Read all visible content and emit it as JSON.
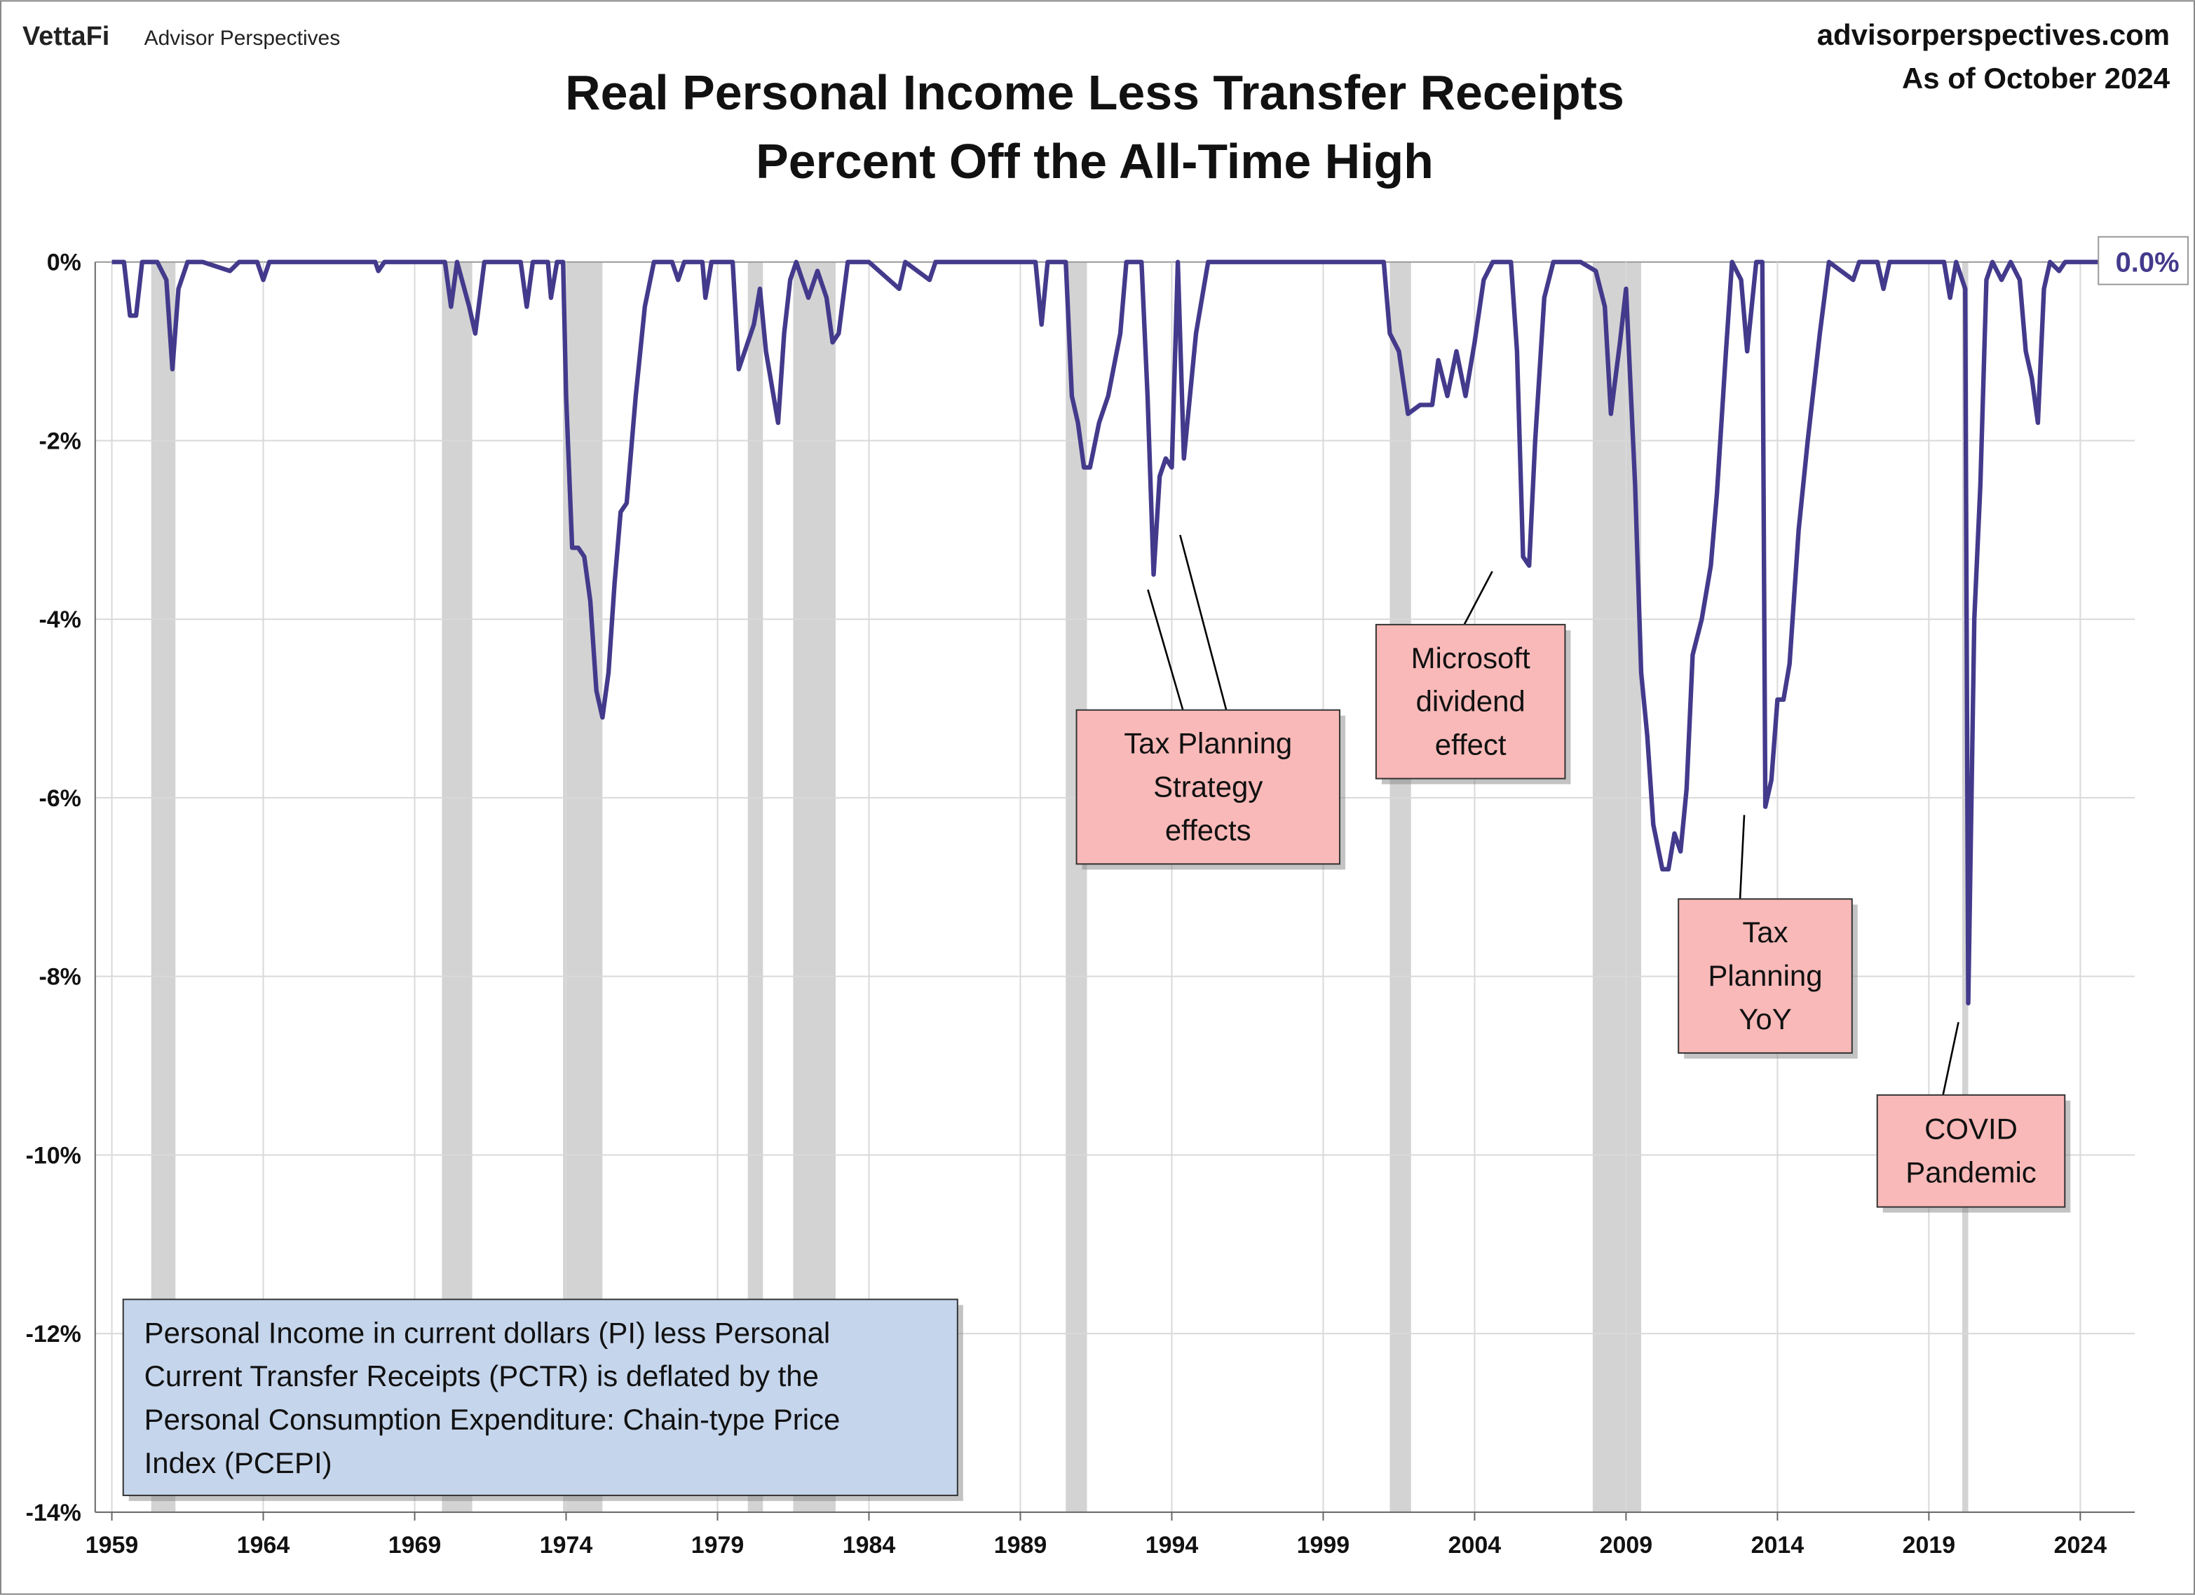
{
  "header": {
    "logo": "VettaFi",
    "brand": "Advisor Perspectives",
    "site": "advisorperspectives.com",
    "date": "As of October 2024"
  },
  "chart_data": {
    "type": "line",
    "title": [
      "Real Personal Income Less Transfer Receipts",
      "Percent Off the All-Time High"
    ],
    "xlim": [
      1958.45,
      2025.8
    ],
    "ylim": [
      -14,
      0
    ],
    "xticks": [
      1959,
      1964,
      1969,
      1974,
      1979,
      1984,
      1989,
      1994,
      1999,
      2004,
      2009,
      2014,
      2019,
      2024
    ],
    "yticks": [
      {
        "value": 0,
        "label": "0%"
      },
      {
        "value": -2,
        "label": "-2%"
      },
      {
        "value": -4,
        "label": "-4%"
      },
      {
        "value": -6,
        "label": "-6%"
      },
      {
        "value": -8,
        "label": "-8%"
      },
      {
        "value": -10,
        "label": "-10%"
      },
      {
        "value": -12,
        "label": "-12%"
      },
      {
        "value": -14,
        "label": "-14%"
      }
    ],
    "grid": true,
    "recessions": [
      [
        1960.3,
        1961.1
      ],
      [
        1969.9,
        1970.9
      ],
      [
        1973.9,
        1975.2
      ],
      [
        1980.0,
        1980.5
      ],
      [
        1981.5,
        1982.9
      ],
      [
        1990.5,
        1991.2
      ],
      [
        2001.2,
        2001.9
      ],
      [
        2007.9,
        2009.5
      ],
      [
        2020.1,
        2020.3
      ]
    ],
    "recession_color": "#d3d3d3",
    "series": [
      {
        "color": "#433a8c",
        "x": [
          1959.0,
          1959.4,
          1959.6,
          1959.8,
          1960.0,
          1960.5,
          1960.8,
          1961.0,
          1961.2,
          1961.5,
          1962.0,
          1962.9,
          1963.2,
          1963.8,
          1964.0,
          1964.2,
          1967.7,
          1967.8,
          1968.0,
          1970.0,
          1970.2,
          1970.4,
          1970.8,
          1971.0,
          1971.3,
          1972.5,
          1972.7,
          1972.9,
          1973.4,
          1973.5,
          1973.7,
          1973.9,
          1974.0,
          1974.2,
          1974.4,
          1974.6,
          1974.8,
          1975.0,
          1975.2,
          1975.4,
          1975.6,
          1975.8,
          1976.0,
          1976.3,
          1976.6,
          1976.9,
          1977.5,
          1977.7,
          1977.9,
          1978.5,
          1978.6,
          1978.8,
          1979.5,
          1979.7,
          1979.9,
          1980.2,
          1980.4,
          1980.6,
          1980.8,
          1981.0,
          1981.2,
          1981.4,
          1981.6,
          1982.0,
          1982.3,
          1982.6,
          1982.8,
          1983.0,
          1983.3,
          1984.0,
          1985.0,
          1985.2,
          1986.0,
          1986.2,
          1989.5,
          1989.7,
          1989.9,
          1990.5,
          1990.7,
          1990.9,
          1991.1,
          1991.3,
          1991.6,
          1991.9,
          1992.3,
          1992.5,
          1993.0,
          1993.2,
          1993.4,
          1993.6,
          1993.8,
          1994.0,
          1994.2,
          1994.4,
          1994.6,
          1994.8,
          1995.2,
          2001.0,
          2001.2,
          2001.5,
          2001.8,
          2002.2,
          2002.6,
          2002.8,
          2003.1,
          2003.4,
          2003.7,
          2004.0,
          2004.3,
          2004.6,
          2005.2,
          2005.4,
          2005.6,
          2005.8,
          2006.0,
          2006.3,
          2006.6,
          2007.5,
          2008.0,
          2008.3,
          2008.5,
          2008.8,
          2009.0,
          2009.3,
          2009.5,
          2009.7,
          2009.9,
          2010.2,
          2010.4,
          2010.6,
          2010.8,
          2011.0,
          2011.2,
          2011.5,
          2011.8,
          2012.0,
          2012.3,
          2012.5,
          2012.8,
          2013.0,
          2013.3,
          2013.5,
          2013.6,
          2013.8,
          2014.0,
          2014.2,
          2014.4,
          2014.7,
          2015.0,
          2015.4,
          2015.7,
          2016.5,
          2016.7,
          2017.3,
          2017.5,
          2017.7,
          2019.5,
          2019.7,
          2019.9,
          2020.2,
          2020.3,
          2020.5,
          2020.7,
          2020.9,
          2021.1,
          2021.4,
          2021.7,
          2022.0,
          2022.2,
          2022.4,
          2022.6,
          2022.8,
          2023.0,
          2023.3,
          2023.5,
          2024.7
        ],
        "values": [
          0,
          0,
          -0.6,
          -0.6,
          0,
          0,
          -0.2,
          -1.2,
          -0.3,
          0,
          0,
          -0.1,
          0,
          0,
          -0.2,
          0,
          0,
          -0.1,
          0,
          0,
          -0.5,
          0,
          -0.5,
          -0.8,
          0,
          0,
          -0.5,
          0,
          0,
          -0.4,
          0,
          0,
          -1.5,
          -3.2,
          -3.2,
          -3.3,
          -3.8,
          -4.8,
          -5.1,
          -4.6,
          -3.6,
          -2.8,
          -2.7,
          -1.5,
          -0.5,
          0,
          0,
          -0.2,
          0,
          0,
          -0.4,
          0,
          0,
          -1.2,
          -1.0,
          -0.7,
          -0.3,
          -1.0,
          -1.4,
          -1.8,
          -0.8,
          -0.2,
          0,
          -0.4,
          -0.1,
          -0.4,
          -0.9,
          -0.8,
          0,
          0,
          -0.3,
          0,
          -0.2,
          0,
          0,
          -0.7,
          0,
          0,
          -1.5,
          -1.8,
          -2.3,
          -2.3,
          -1.8,
          -1.5,
          -0.8,
          0,
          0,
          -1.5,
          -3.5,
          -2.4,
          -2.2,
          -2.3,
          0,
          -2.2,
          -1.5,
          -0.8,
          0,
          0,
          -0.8,
          -1.0,
          -1.7,
          -1.6,
          -1.6,
          -1.1,
          -1.5,
          -1.0,
          -1.5,
          -0.9,
          -0.2,
          0,
          0,
          -1.0,
          -3.3,
          -3.4,
          -2.0,
          -0.4,
          0,
          0,
          -0.1,
          -0.5,
          -1.7,
          -0.9,
          -0.3,
          -2.5,
          -4.6,
          -5.3,
          -6.3,
          -6.8,
          -6.8,
          -6.4,
          -6.6,
          -5.9,
          -4.4,
          -4.0,
          -3.4,
          -2.6,
          -1.0,
          0,
          -0.2,
          -1.0,
          0,
          0,
          -6.1,
          -5.8,
          -4.9,
          -4.9,
          -4.5,
          -3.0,
          -2.0,
          -0.8,
          0,
          -0.2,
          0,
          0,
          -0.3,
          0,
          0,
          -0.4,
          0,
          -0.3,
          -8.3,
          -4.0,
          -2.5,
          -0.2,
          0,
          -0.2,
          0,
          -0.2,
          -1.0,
          -1.3,
          -1.8,
          -0.3,
          0,
          -0.1,
          0,
          0
        ]
      }
    ],
    "end_label": {
      "value": 0.0,
      "label": "0.0%"
    },
    "annotations": [
      {
        "lines": [
          "Tax Planning",
          "Strategy",
          "effects"
        ]
      },
      {
        "lines": [
          "Microsoft",
          "dividend",
          "effect"
        ]
      },
      {
        "lines": [
          "Tax",
          "Planning",
          "YoY"
        ]
      },
      {
        "lines": [
          "COVID",
          "Pandemic"
        ]
      }
    ],
    "note": [
      "Personal Income in current dollars  (PI) less Personal",
      "Current Transfer Receipts (PCTR) is deflated by the",
      "Personal Consumption Expenditure: Chain-type Price",
      "Index (PCEPI)"
    ]
  }
}
